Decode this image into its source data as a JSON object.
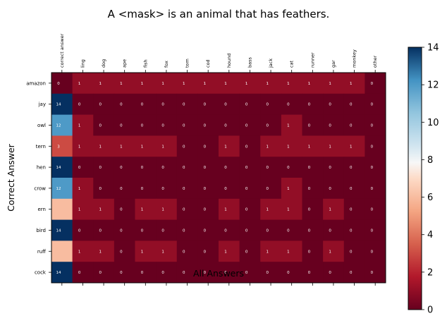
{
  "chart_data": {
    "type": "heatmap",
    "title": "A <mask> is an animal that has feathers.",
    "xlabel": "All Answers",
    "ylabel": "Correct Answer",
    "x_categories": [
      "correct answer",
      "ling",
      "dog",
      "ape",
      "fish",
      "fox",
      "tom",
      "cod",
      "hound",
      "bass",
      "jack",
      "cat",
      "runner",
      "gar",
      "monkey",
      "other"
    ],
    "y_categories": [
      "amazon",
      "jay",
      "owl",
      "tern",
      "hen",
      "crow",
      "ern",
      "bird",
      "ruff",
      "cock"
    ],
    "values": [
      [
        0,
        1,
        1,
        1,
        1,
        1,
        1,
        1,
        1,
        1,
        1,
        1,
        1,
        1,
        1,
        0
      ],
      [
        14,
        0,
        0,
        0,
        0,
        0,
        0,
        0,
        0,
        0,
        0,
        0,
        0,
        0,
        0,
        0
      ],
      [
        12,
        1,
        0,
        0,
        0,
        0,
        0,
        0,
        0,
        0,
        0,
        1,
        0,
        0,
        0,
        0
      ],
      [
        3,
        1,
        1,
        1,
        1,
        1,
        0,
        0,
        1,
        0,
        1,
        1,
        1,
        1,
        1,
        0
      ],
      [
        14,
        0,
        0,
        0,
        0,
        0,
        0,
        0,
        0,
        0,
        0,
        0,
        0,
        0,
        0,
        0
      ],
      [
        12,
        1,
        0,
        0,
        0,
        0,
        0,
        0,
        0,
        0,
        0,
        1,
        0,
        0,
        0,
        0
      ],
      [
        6,
        1,
        1,
        0,
        1,
        1,
        0,
        0,
        1,
        0,
        1,
        1,
        0,
        1,
        0,
        0
      ],
      [
        14,
        0,
        0,
        0,
        0,
        0,
        0,
        0,
        0,
        0,
        0,
        0,
        0,
        0,
        0,
        0
      ],
      [
        6,
        1,
        1,
        0,
        1,
        1,
        0,
        0,
        1,
        0,
        1,
        1,
        0,
        1,
        0,
        0
      ],
      [
        14,
        0,
        0,
        0,
        0,
        0,
        0,
        0,
        0,
        0,
        0,
        0,
        0,
        0,
        0,
        0
      ]
    ],
    "hidden_labels": [
      [
        6,
        0
      ],
      [
        8,
        0
      ]
    ],
    "colormap": "RdBu",
    "colorbar": {
      "range": [
        0,
        14
      ],
      "ticks": [
        0,
        2,
        4,
        6,
        8,
        10,
        12,
        14
      ]
    }
  }
}
